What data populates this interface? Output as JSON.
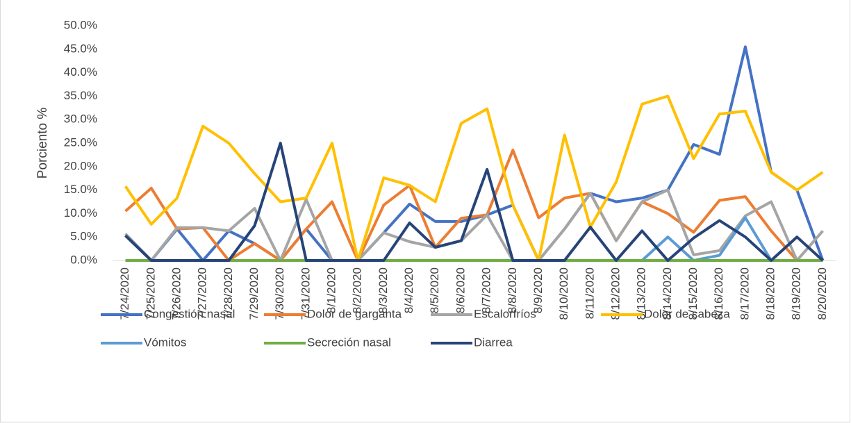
{
  "chart_data": {
    "type": "line",
    "y_label": "Porciento %",
    "categories": [
      "7/24/2020",
      "7/25/2020",
      "7/26/2020",
      "7/27/2020",
      "7/28/2020",
      "7/29/2020",
      "7/30/2020",
      "7/31/2020",
      "8/1/2020",
      "8/2/2020",
      "8/3/2020",
      "8/4/2020",
      "8/5/2020",
      "8/6/2020",
      "8/7/2020",
      "8/8/2020",
      "8/9/2020",
      "8/10/2020",
      "8/11/2020",
      "8/12/2020",
      "8/13/2020",
      "8/14/2020",
      "8/15/2020",
      "8/16/2020",
      "8/17/2020",
      "8/18/2020",
      "8/19/2020",
      "8/20/2020"
    ],
    "series": [
      {
        "name": "Congestión nasal",
        "color": "#4472c4",
        "values": [
          5.3,
          0,
          6.7,
          0,
          6.3,
          3.6,
          0,
          6.7,
          0,
          0,
          5.9,
          12,
          8.3,
          8.3,
          9.7,
          11.8,
          0,
          6.7,
          14.3,
          12.5,
          13.3,
          15,
          24.7,
          22.6,
          45.5,
          18.8,
          15,
          0
        ]
      },
      {
        "name": "Dolor de garganta",
        "color": "#ed7d31",
        "values": [
          10.5,
          15.4,
          6.7,
          7,
          0,
          3.6,
          0,
          6.7,
          12.5,
          0,
          11.8,
          16,
          2.8,
          9,
          9.7,
          23.5,
          9.1,
          13.3,
          14.3,
          4.2,
          12.5,
          10,
          6,
          12.8,
          13.6,
          6.3,
          0,
          0
        ]
      },
      {
        "name": "Escalorfríos",
        "color": "#a5a5a5",
        "values": [
          5.7,
          0,
          7,
          7,
          6.3,
          11.1,
          0,
          13,
          0,
          0,
          5.9,
          4,
          2.8,
          4.2,
          9.7,
          0,
          0,
          6.7,
          14.3,
          4.2,
          12.5,
          15,
          1.2,
          2.1,
          9.5,
          12.5,
          0,
          6.3
        ]
      },
      {
        "name": "Dolor de cabeza",
        "color": "#ffc000",
        "values": [
          15.8,
          7.7,
          13.3,
          28.6,
          25,
          18.5,
          12.5,
          13.3,
          25,
          0,
          17.6,
          16,
          12.5,
          29.2,
          32.3,
          11.8,
          0,
          26.7,
          7.1,
          16.7,
          33.3,
          35,
          21.7,
          31.2,
          31.8,
          18.8,
          15,
          18.8
        ]
      },
      {
        "name": "Vómitos",
        "color": "#5b9bd5",
        "values": [
          0,
          0,
          0,
          0,
          0,
          0,
          0,
          0,
          0,
          0,
          0,
          0,
          0,
          0,
          0,
          0,
          0,
          0,
          0,
          0,
          0,
          5,
          0,
          1.1,
          9.1,
          0,
          0,
          0
        ]
      },
      {
        "name": "Secreción nasal",
        "color": "#70ad47",
        "values": [
          0,
          0,
          0,
          0,
          0,
          0,
          0,
          0,
          0,
          0,
          0,
          0,
          0,
          0,
          0,
          0,
          0,
          0,
          0,
          0,
          0,
          0,
          0,
          0,
          0,
          0,
          0,
          0
        ]
      },
      {
        "name": "Diarrea",
        "color": "#264478",
        "values": [
          5.3,
          0,
          0,
          0,
          0,
          7.4,
          25,
          0,
          0,
          0,
          0,
          8,
          2.8,
          4.2,
          19.4,
          0,
          0,
          0,
          7.1,
          0,
          6.3,
          0,
          4.8,
          8.5,
          5,
          0,
          5,
          0
        ]
      }
    ],
    "ylim": [
      0,
      50
    ],
    "yticks": [
      {
        "value": 0,
        "label": "0.0%"
      },
      {
        "value": 5,
        "label": "5.0%"
      },
      {
        "value": 10,
        "label": "10.0%"
      },
      {
        "value": 15,
        "label": "15.0%"
      },
      {
        "value": 20,
        "label": "20.0%"
      },
      {
        "value": 25,
        "label": "25.0%"
      },
      {
        "value": 30,
        "label": "30.0%"
      },
      {
        "value": 35,
        "label": "35.0%"
      },
      {
        "value": 40,
        "label": "40.0%"
      },
      {
        "value": 45,
        "label": "45.0%"
      },
      {
        "value": 50,
        "label": "50.0%"
      }
    ],
    "grid": false,
    "legend": "bottom"
  }
}
